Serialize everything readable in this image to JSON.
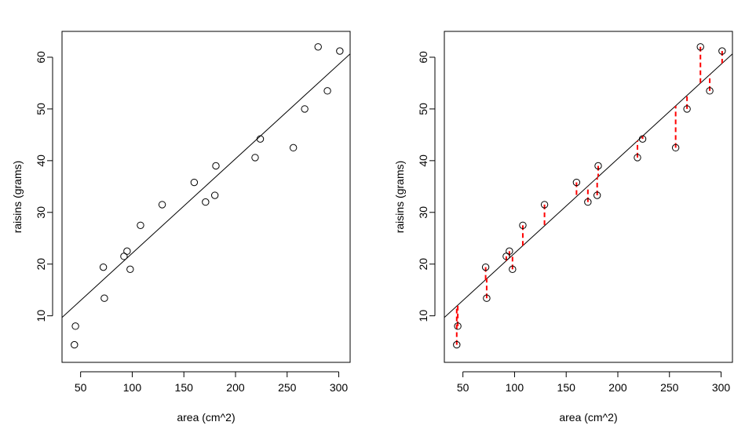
{
  "chart_data": [
    {
      "type": "scatter",
      "xlabel": "area (cm^2)",
      "ylabel": "raisins (grams)",
      "xlim": [
        32,
        311
      ],
      "ylim": [
        1,
        65
      ],
      "x_ticks": [
        50,
        100,
        150,
        200,
        250,
        300
      ],
      "y_ticks": [
        10,
        20,
        30,
        40,
        50,
        60
      ],
      "grid": false,
      "points": [
        {
          "x": 44,
          "y": 4.4
        },
        {
          "x": 45,
          "y": 8.0
        },
        {
          "x": 72,
          "y": 19.4
        },
        {
          "x": 73,
          "y": 13.4
        },
        {
          "x": 92,
          "y": 21.5
        },
        {
          "x": 95,
          "y": 22.5
        },
        {
          "x": 98,
          "y": 19.0
        },
        {
          "x": 108,
          "y": 27.5
        },
        {
          "x": 129,
          "y": 31.5
        },
        {
          "x": 160,
          "y": 35.8
        },
        {
          "x": 171,
          "y": 32.0
        },
        {
          "x": 180,
          "y": 33.3
        },
        {
          "x": 181,
          "y": 39.0
        },
        {
          "x": 219,
          "y": 40.6
        },
        {
          "x": 224,
          "y": 44.2
        },
        {
          "x": 256,
          "y": 42.5
        },
        {
          "x": 267,
          "y": 50.0
        },
        {
          "x": 280,
          "y": 62.0
        },
        {
          "x": 289,
          "y": 53.5
        },
        {
          "x": 301,
          "y": 61.2
        }
      ],
      "fit_line": {
        "intercept": 3.83,
        "slope": 0.1827
      },
      "residual_lines": false
    },
    {
      "type": "scatter",
      "xlabel": "area (cm^2)",
      "ylabel": "raisins (grams)",
      "xlim": [
        32,
        311
      ],
      "ylim": [
        1,
        65
      ],
      "x_ticks": [
        50,
        100,
        150,
        200,
        250,
        300
      ],
      "y_ticks": [
        10,
        20,
        30,
        40,
        50,
        60
      ],
      "grid": false,
      "points": [
        {
          "x": 44,
          "y": 4.4
        },
        {
          "x": 45,
          "y": 8.0
        },
        {
          "x": 72,
          "y": 19.4
        },
        {
          "x": 73,
          "y": 13.4
        },
        {
          "x": 92,
          "y": 21.5
        },
        {
          "x": 95,
          "y": 22.5
        },
        {
          "x": 98,
          "y": 19.0
        },
        {
          "x": 108,
          "y": 27.5
        },
        {
          "x": 129,
          "y": 31.5
        },
        {
          "x": 160,
          "y": 35.8
        },
        {
          "x": 171,
          "y": 32.0
        },
        {
          "x": 180,
          "y": 33.3
        },
        {
          "x": 181,
          "y": 39.0
        },
        {
          "x": 219,
          "y": 40.6
        },
        {
          "x": 224,
          "y": 44.2
        },
        {
          "x": 256,
          "y": 42.5
        },
        {
          "x": 267,
          "y": 50.0
        },
        {
          "x": 280,
          "y": 62.0
        },
        {
          "x": 289,
          "y": 53.5
        },
        {
          "x": 301,
          "y": 61.2
        }
      ],
      "fit_line": {
        "intercept": 3.83,
        "slope": 0.1827
      },
      "residual_lines": true,
      "residual_color": "#ff0000"
    }
  ]
}
